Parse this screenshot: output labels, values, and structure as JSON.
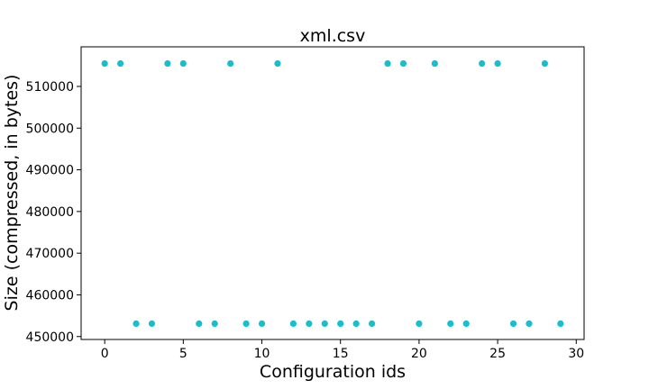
{
  "chart_data": {
    "type": "scatter",
    "title": "xml.csv",
    "xlabel": "Configuration ids",
    "ylabel": "Size (compressed, in bytes)",
    "xlim": [
      -1.5,
      30.5
    ],
    "ylim": [
      449300,
      519500
    ],
    "xticks": [
      0,
      5,
      10,
      15,
      20,
      25,
      30
    ],
    "yticks": [
      450000,
      460000,
      470000,
      480000,
      490000,
      500000,
      510000
    ],
    "grid": false,
    "marker_color": "#17becf",
    "x": [
      0,
      1,
      2,
      3,
      4,
      5,
      6,
      7,
      8,
      9,
      10,
      11,
      12,
      13,
      14,
      15,
      16,
      17,
      18,
      19,
      20,
      21,
      22,
      23,
      24,
      25,
      26,
      27,
      28,
      29
    ],
    "y": [
      515500,
      515500,
      453100,
      453100,
      515500,
      515500,
      453100,
      453100,
      515500,
      453100,
      453100,
      515500,
      453100,
      453100,
      453100,
      453100,
      453100,
      453100,
      515500,
      515500,
      453100,
      515500,
      453100,
      453100,
      515500,
      515500,
      453100,
      453100,
      515500,
      453100
    ]
  }
}
